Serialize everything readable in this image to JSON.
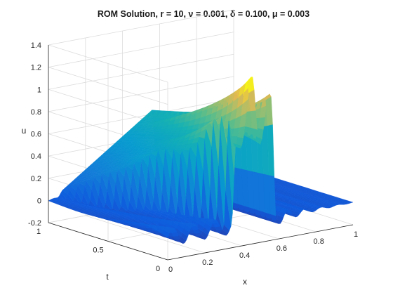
{
  "chart_data": {
    "type": "surface",
    "title": "ROM Solution, r = 10, ν = 0.001, δ = 0.100, μ = 0.003",
    "xlabel": "x",
    "ylabel": "t",
    "zlabel": "u",
    "xlim": [
      0,
      1
    ],
    "ylim": [
      0,
      1
    ],
    "zlim": [
      -0.2,
      1.4
    ],
    "x_ticks": [
      "0",
      "0.2",
      "0.4",
      "0.6",
      "0.8",
      "1"
    ],
    "y_ticks": [
      "0",
      "0.5",
      "1"
    ],
    "z_ticks": [
      "-0.2",
      "0",
      "0.2",
      "0.4",
      "0.6",
      "0.8",
      "1",
      "1.2",
      "1.4"
    ],
    "colormap": "parula",
    "grid": true,
    "description_data": {
      "initial_condition_t0": "u ≈ 0 for x < 0.35 (with oscillations), u ≈ 0.9 plateau for 0.35 ≤ x ≤ 0.55 with peak ≈ 1.25 near x ≈ 0.45, u ≈ 0 for x > 0.55",
      "final_condition_t1": "ramp rising from u ≈ 0 at x = 0 to u ≈ 0.65 at x ≈ 0.55, then sharp drop to u ≈ 0"
    }
  }
}
